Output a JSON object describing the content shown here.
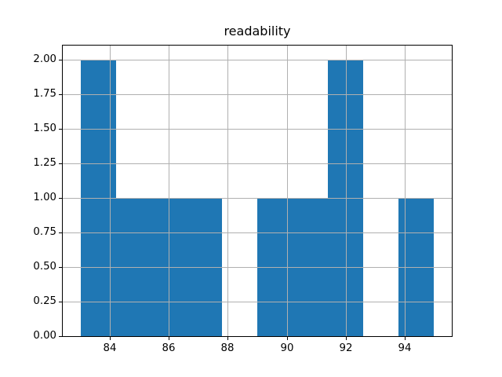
{
  "chart_data": {
    "type": "bar",
    "subtype": "histogram",
    "title": "readability",
    "xlabel": "",
    "ylabel": "",
    "bin_edges": [
      83.0,
      84.2,
      85.4,
      86.6,
      87.8,
      89.0,
      90.2,
      91.4,
      92.6,
      93.8,
      95.0
    ],
    "counts": [
      2,
      1,
      1,
      1,
      0,
      1,
      1,
      2,
      0,
      1
    ],
    "xlim": [
      82.4,
      95.6
    ],
    "ylim": [
      0,
      2.1
    ],
    "xticks": [
      {
        "value": 84,
        "label": "84"
      },
      {
        "value": 86,
        "label": "86"
      },
      {
        "value": 88,
        "label": "88"
      },
      {
        "value": 90,
        "label": "90"
      },
      {
        "value": 92,
        "label": "92"
      },
      {
        "value": 94,
        "label": "94"
      }
    ],
    "yticks": [
      {
        "value": 0.0,
        "label": "0.00"
      },
      {
        "value": 0.25,
        "label": "0.25"
      },
      {
        "value": 0.5,
        "label": "0.50"
      },
      {
        "value": 0.75,
        "label": "0.75"
      },
      {
        "value": 1.0,
        "label": "1.00"
      },
      {
        "value": 1.25,
        "label": "1.25"
      },
      {
        "value": 1.5,
        "label": "1.50"
      },
      {
        "value": 1.75,
        "label": "1.75"
      },
      {
        "value": 2.0,
        "label": "2.00"
      }
    ],
    "grid": true,
    "grid_above_bars": true,
    "legend": null,
    "colors": {
      "bar": "#1f77b4",
      "grid": "#b0b0b0",
      "spine": "#000000",
      "background": "#ffffff",
      "text": "#000000"
    }
  }
}
